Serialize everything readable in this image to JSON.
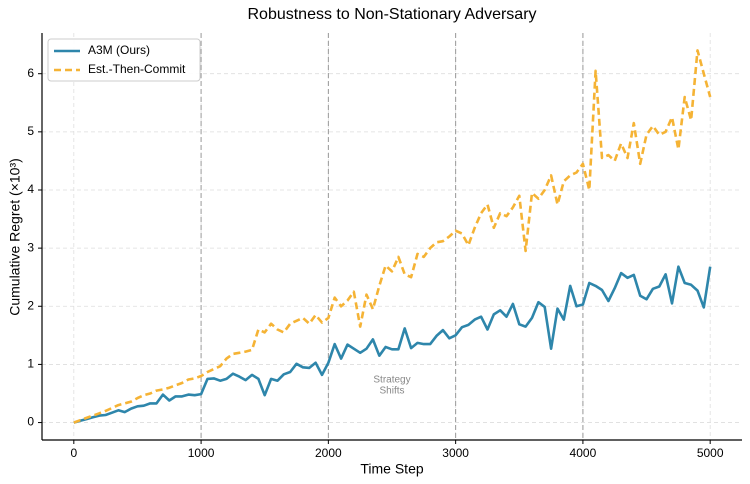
{
  "chart_data": {
    "type": "line",
    "title": "Robustness to Non-Stationary Adversary",
    "xlabel": "Time Step",
    "ylabel": "Cumulative Regret (×10³)",
    "annotation": [
      "Strategy",
      "Shifts"
    ],
    "vlines": [
      1000,
      2000,
      3000,
      4000
    ],
    "xlim": [
      -250,
      5250
    ],
    "ylim": [
      -0.3,
      6.7
    ],
    "xticks": [
      0,
      1000,
      2000,
      3000,
      4000,
      5000
    ],
    "yticks": [
      0,
      1,
      2,
      3,
      4,
      5,
      6
    ],
    "grid": true,
    "legend": "upper left",
    "x": [
      0,
      50,
      100,
      150,
      200,
      250,
      300,
      350,
      400,
      450,
      500,
      550,
      600,
      650,
      700,
      750,
      800,
      850,
      900,
      950,
      1000,
      1050,
      1100,
      1150,
      1200,
      1250,
      1300,
      1350,
      1400,
      1450,
      1500,
      1550,
      1600,
      1650,
      1700,
      1750,
      1800,
      1850,
      1900,
      1950,
      2000,
      2050,
      2100,
      2150,
      2200,
      2250,
      2300,
      2350,
      2400,
      2450,
      2500,
      2550,
      2600,
      2650,
      2700,
      2750,
      2800,
      2850,
      2900,
      2950,
      3000,
      3050,
      3100,
      3150,
      3200,
      3250,
      3300,
      3350,
      3400,
      3450,
      3500,
      3550,
      3600,
      3650,
      3700,
      3750,
      3800,
      3850,
      3900,
      3950,
      4000,
      4050,
      4100,
      4150,
      4200,
      4250,
      4300,
      4350,
      4400,
      4450,
      4500,
      4550,
      4600,
      4650,
      4700,
      4750,
      4800,
      4850,
      4900,
      4950,
      5000
    ],
    "series": [
      {
        "name": "A3M (Ours)",
        "color": "#2e86ab",
        "dash": false,
        "values": [
          0,
          0.03,
          0.06,
          0.09,
          0.12,
          0.13,
          0.17,
          0.21,
          0.18,
          0.24,
          0.28,
          0.29,
          0.33,
          0.33,
          0.48,
          0.38,
          0.45,
          0.45,
          0.48,
          0.47,
          0.49,
          0.75,
          0.76,
          0.72,
          0.75,
          0.84,
          0.79,
          0.73,
          0.82,
          0.75,
          0.47,
          0.75,
          0.72,
          0.83,
          0.87,
          1.01,
          0.95,
          0.94,
          1.03,
          0.82,
          1.03,
          1.35,
          1.1,
          1.34,
          1.27,
          1.2,
          1.27,
          1.43,
          1.15,
          1.3,
          1.26,
          1.26,
          1.62,
          1.28,
          1.37,
          1.35,
          1.35,
          1.49,
          1.59,
          1.45,
          1.5,
          1.64,
          1.68,
          1.77,
          1.82,
          1.6,
          1.86,
          1.93,
          1.82,
          2.04,
          1.69,
          1.65,
          1.8,
          2.07,
          1.99,
          1.27,
          1.96,
          1.77,
          2.35,
          2.0,
          2.03,
          2.4,
          2.35,
          2.28,
          2.09,
          2.31,
          2.57,
          2.49,
          2.54,
          2.18,
          2.12,
          2.3,
          2.34,
          2.55,
          2.05,
          2.68,
          2.4,
          2.37,
          2.27,
          1.98,
          2.68
        ]
      },
      {
        "name": "Est.-Then-Commit",
        "color": "#f5b335",
        "dash": true,
        "values": [
          0,
          0.04,
          0.08,
          0.12,
          0.16,
          0.2,
          0.25,
          0.3,
          0.33,
          0.36,
          0.42,
          0.47,
          0.5,
          0.55,
          0.57,
          0.6,
          0.64,
          0.68,
          0.74,
          0.76,
          0.8,
          0.87,
          0.92,
          0.97,
          1.1,
          1.18,
          1.2,
          1.22,
          1.25,
          1.6,
          1.55,
          1.7,
          1.6,
          1.55,
          1.7,
          1.75,
          1.8,
          1.7,
          1.85,
          1.72,
          1.8,
          2.15,
          2.0,
          2.1,
          2.25,
          1.65,
          2.2,
          1.95,
          2.35,
          2.7,
          2.6,
          2.85,
          2.55,
          2.5,
          2.9,
          2.85,
          3.0,
          3.1,
          3.12,
          3.2,
          3.3,
          3.25,
          3.05,
          3.35,
          3.6,
          3.75,
          3.35,
          3.6,
          3.55,
          3.7,
          3.9,
          2.95,
          3.95,
          3.85,
          4.0,
          4.25,
          3.75,
          4.15,
          4.25,
          4.3,
          4.45,
          4.0,
          6.05,
          4.55,
          4.6,
          4.5,
          4.8,
          4.55,
          5.15,
          4.45,
          4.95,
          5.1,
          4.95,
          5.0,
          5.25,
          4.7,
          5.6,
          5.2,
          6.4,
          6.0,
          5.6
        ]
      }
    ]
  }
}
